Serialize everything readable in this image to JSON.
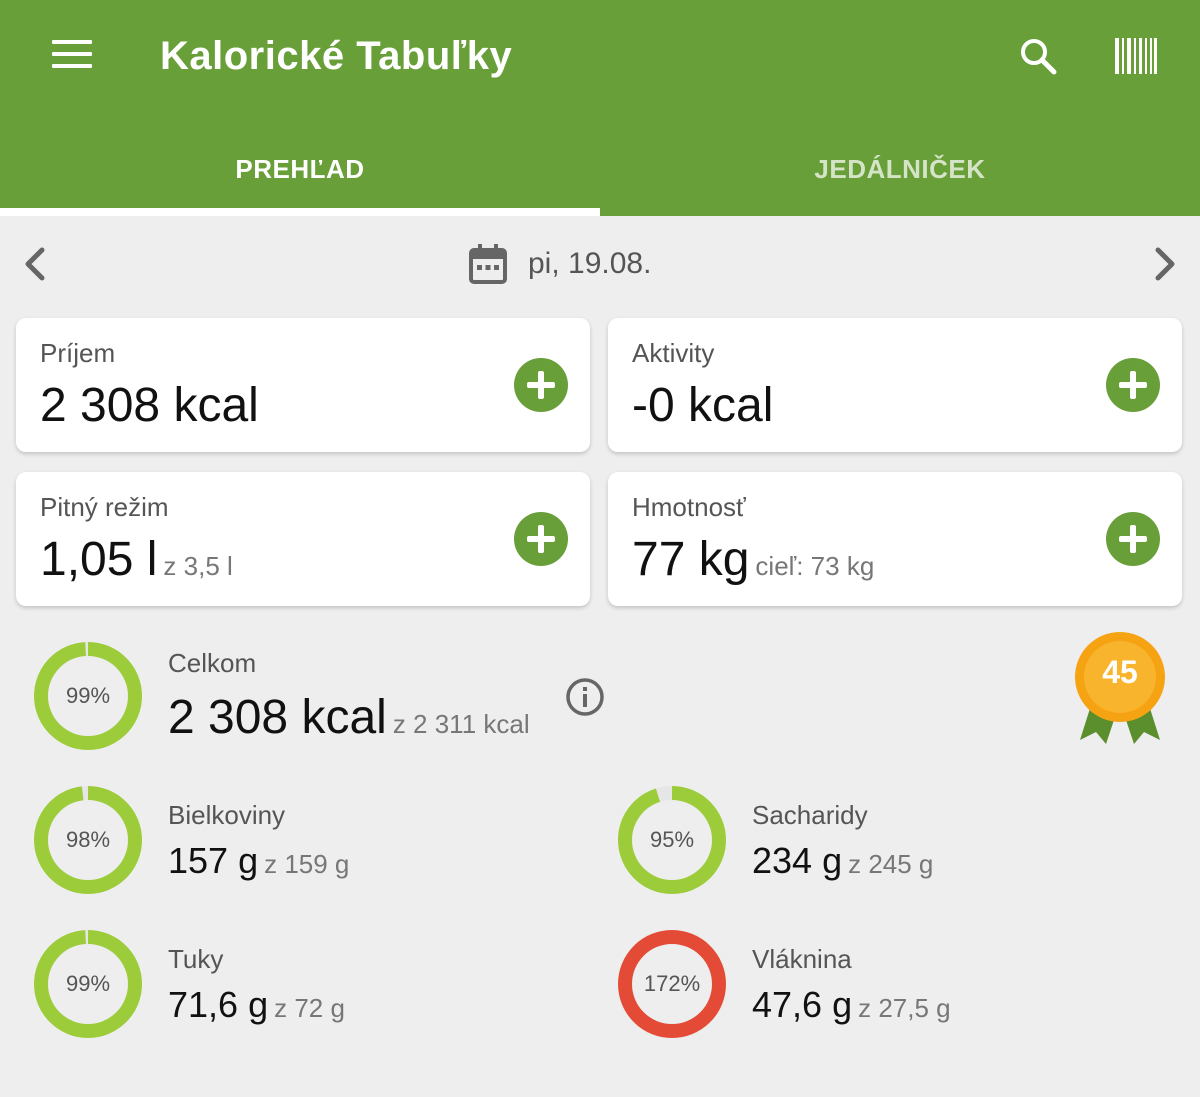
{
  "header": {
    "title": "Kalorické Tabuľky"
  },
  "tabs": [
    {
      "label": "PREHĽAD"
    },
    {
      "label": "JEDÁLNIČEK"
    }
  ],
  "date": {
    "label": "pi, 19.08."
  },
  "cards": {
    "intake": {
      "label": "Príjem",
      "value": "2 308 kcal"
    },
    "activities": {
      "label": "Aktivity",
      "value": "-0 kcal"
    },
    "water": {
      "label": "Pitný režim",
      "value": "1,05 l",
      "sub": "z 3,5 l"
    },
    "weight": {
      "label": "Hmotnosť",
      "value": "77 kg",
      "sub": "cieľ: 73 kg"
    }
  },
  "colors": {
    "primary": "#689f38",
    "ring_ok": "#9ccc3a",
    "ring_over": "#e44b37",
    "ring_track": "#e6e6e6",
    "badge": "#f6a313"
  },
  "nutrients": {
    "total": {
      "label": "Celkom",
      "value": "2 308 kcal",
      "sub": "z 2 311 kcal",
      "percent_label": "99%",
      "percent": 99
    },
    "protein": {
      "label": "Bielkoviny",
      "value": "157 g",
      "sub": "z 159 g",
      "percent_label": "98%",
      "percent": 98
    },
    "carbs": {
      "label": "Sacharidy",
      "value": "234 g",
      "sub": "z 245 g",
      "percent_label": "95%",
      "percent": 95
    },
    "fat": {
      "label": "Tuky",
      "value": "71,6 g",
      "sub": "z 72 g",
      "percent_label": "99%",
      "percent": 99
    },
    "fiber": {
      "label": "Vláknina",
      "value": "47,6 g",
      "sub": "z 27,5 g",
      "percent_label": "172%",
      "percent": 172
    }
  },
  "badge": {
    "value": "45"
  },
  "icons": {
    "menu": "menu-icon",
    "search": "search-icon",
    "barcode": "barcode-icon",
    "prev": "chevron-left-icon",
    "next": "chevron-right-icon",
    "calendar": "calendar-icon",
    "add": "plus-circle-icon",
    "info": "info-icon",
    "badge": "award-badge-icon"
  }
}
